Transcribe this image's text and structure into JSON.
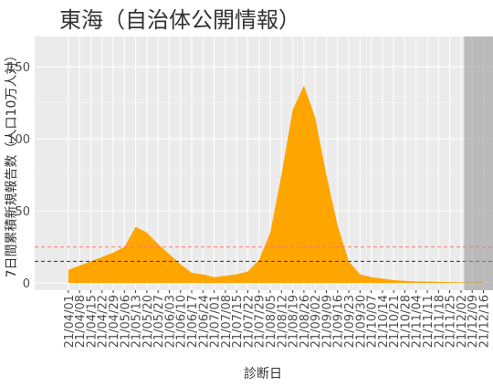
{
  "chart_data": {
    "type": "area",
    "title": "東海（自治体公開情報）",
    "x_label": "診断日",
    "y_label": "7日間累積新規報告数（人口10万人対）",
    "x": [
      "21/04/01",
      "21/04/08",
      "21/04/15",
      "21/04/22",
      "21/04/29",
      "21/05/06",
      "21/05/13",
      "21/05/20",
      "21/05/27",
      "21/06/03",
      "21/06/10",
      "21/06/17",
      "21/06/24",
      "21/07/01",
      "21/07/08",
      "21/07/15",
      "21/07/22",
      "21/07/29",
      "21/08/05",
      "21/08/12",
      "21/08/19",
      "21/08/26",
      "21/09/02",
      "21/09/09",
      "21/09/16",
      "21/09/23",
      "21/09/30",
      "21/10/07",
      "21/10/14",
      "21/10/21",
      "21/10/28",
      "21/11/04",
      "21/11/11",
      "21/11/18",
      "21/11/25",
      "21/12/02",
      "21/12/09",
      "21/12/16"
    ],
    "values": [
      9,
      12,
      15,
      18,
      21,
      25,
      39,
      35,
      27,
      20,
      13,
      7,
      6,
      4,
      5,
      6,
      8,
      16,
      35,
      75,
      120,
      137,
      115,
      75,
      40,
      15,
      6,
      4,
      3,
      2,
      1.5,
      1,
      1,
      0.8,
      0.6,
      0.5,
      0.5,
      0.6
    ],
    "color": "#ffa500",
    "xlim": [
      "21/03/11",
      "21/12/22"
    ],
    "xticks": [
      "21/04/01",
      "21/04/08",
      "21/04/15",
      "21/04/22",
      "21/04/29",
      "21/05/06",
      "21/05/13",
      "21/05/20",
      "21/05/27",
      "21/06/03",
      "21/06/10",
      "21/06/17",
      "21/06/24",
      "21/07/01",
      "21/07/08",
      "21/07/15",
      "21/07/22",
      "21/07/29",
      "21/08/05",
      "21/08/12",
      "21/08/19",
      "21/08/26",
      "21/09/02",
      "21/09/09",
      "21/09/16",
      "21/09/23",
      "21/09/30",
      "21/10/07",
      "21/10/14",
      "21/10/21",
      "21/10/28",
      "21/11/04",
      "21/11/11",
      "21/11/18",
      "21/11/25",
      "21/12/02",
      "21/12/09",
      "21/12/16"
    ],
    "ylim": [
      -5,
      171
    ],
    "yticks": [
      0,
      50,
      100,
      150
    ],
    "grid": true,
    "hlines": [
      {
        "value": 25,
        "color": "#f8766d"
      },
      {
        "value": 15,
        "color": "#333333"
      }
    ],
    "shade_from": "21/12/04",
    "shade_color": "#999999"
  }
}
